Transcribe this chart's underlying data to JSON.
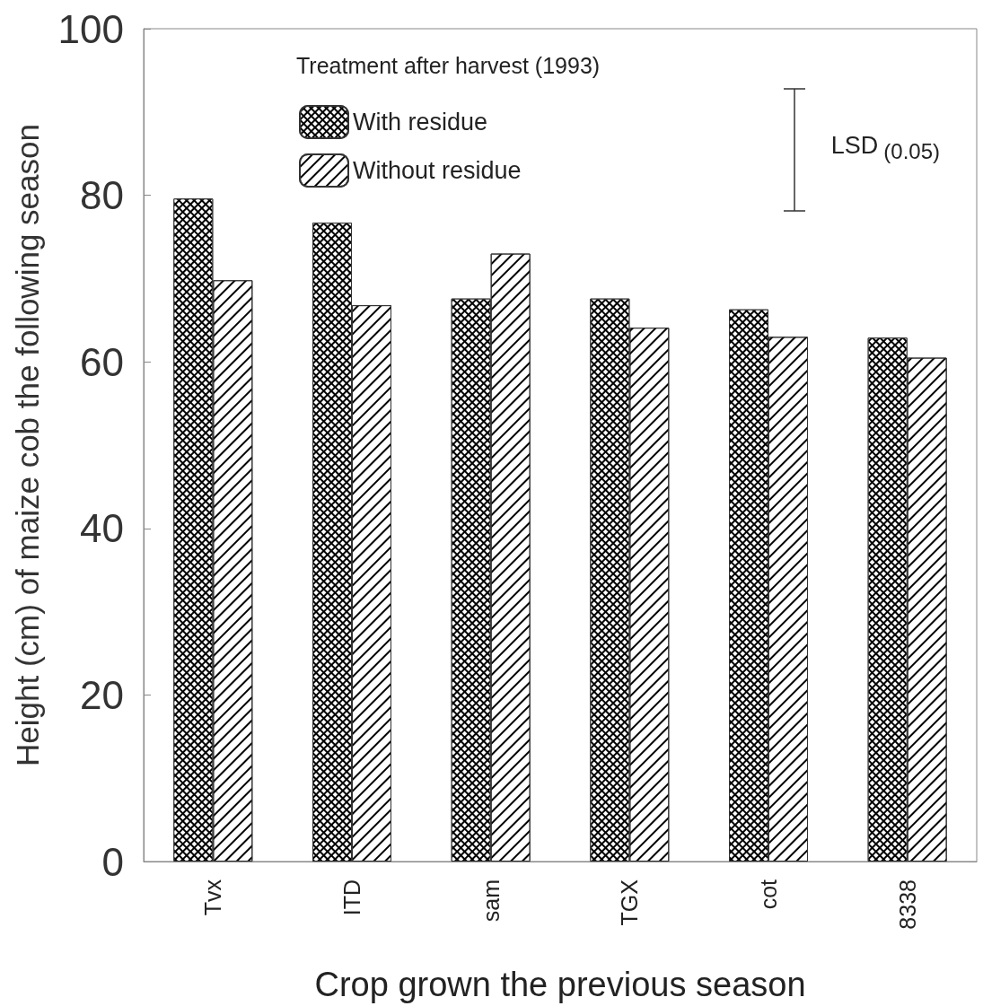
{
  "chart_data": {
    "type": "bar",
    "xlabel": "Crop grown the previous season",
    "ylabel": "Height (cm) of maize cob the following season",
    "legend_title": "Treatment after harvest (1993)",
    "categories": [
      "Tvx",
      "ITD",
      "sam",
      "TGX",
      "cot",
      "8338"
    ],
    "series": [
      {
        "name": "With residue",
        "color": "#000000",
        "values": [
          79.6,
          76.7,
          67.6,
          67.6,
          66.3,
          62.9
        ]
      },
      {
        "name": "Without residue",
        "color": "#ffffff",
        "values": [
          69.8,
          66.8,
          73.0,
          64.1,
          63.0,
          60.5
        ]
      }
    ],
    "annotations": [
      "LSD$_{(0.05)}$"
    ],
    "ylim": [
      0,
      100
    ],
    "yticks": [
      0,
      20,
      40,
      60,
      80,
      100
    ],
    "grid": false,
    "legend": "top left"
  }
}
